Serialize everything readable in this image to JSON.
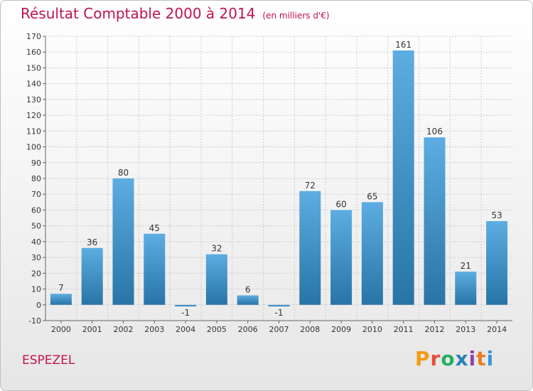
{
  "header": {
    "title": "Résultat Comptable 2000 à 2014",
    "subtitle": "(en milliers d'€)"
  },
  "footer": {
    "commune": "ESPEZEL",
    "logo_text": "Proxiti",
    "logo_colors": [
      "#f39c12",
      "#e74c3c",
      "#27ae60",
      "#2980b9",
      "#8e44ad",
      "#e67e22",
      "#3498db"
    ]
  },
  "colors": {
    "bar_top": "#5dade2",
    "bar_bottom": "#2874a6",
    "accent": "#c0144b"
  },
  "chart_data": {
    "type": "bar",
    "title": "Résultat Comptable 2000 à 2014",
    "subtitle": "(en milliers d'€)",
    "xlabel": "",
    "ylabel": "",
    "categories": [
      "2000",
      "2001",
      "2002",
      "2003",
      "2004",
      "2005",
      "2006",
      "2007",
      "2008",
      "2009",
      "2010",
      "2011",
      "2012",
      "2013",
      "2014"
    ],
    "values": [
      7,
      36,
      80,
      45,
      -1,
      32,
      6,
      -1,
      72,
      60,
      65,
      161,
      106,
      21,
      53
    ],
    "ylim": [
      -10,
      170
    ],
    "yticks": [
      -10,
      0,
      10,
      20,
      30,
      40,
      50,
      60,
      70,
      80,
      90,
      100,
      110,
      120,
      130,
      140,
      150,
      160,
      170
    ],
    "grid": true,
    "legend": "none"
  }
}
